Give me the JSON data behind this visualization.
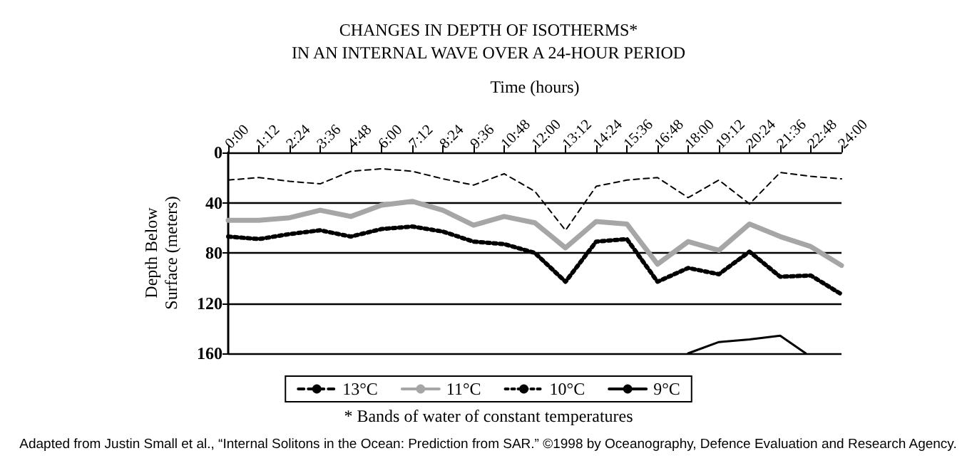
{
  "chart_data": {
    "type": "line",
    "title": "CHANGES IN DEPTH OF ISOTHERMS*\nIN AN INTERNAL WAVE OVER A 24-HOUR PERIOD",
    "xlabel": "Time (hours)",
    "ylabel": "Depth Below\nSurface (meters)",
    "x": [
      0,
      1.2,
      2.4,
      3.6,
      4.8,
      6,
      7.2,
      8.4,
      9.6,
      10.8,
      12,
      13.2,
      14.4,
      15.6,
      16.8,
      18,
      19.2,
      20.4,
      21.6,
      22.8,
      24
    ],
    "series": [
      {
        "name": "13°C",
        "color": "#000000",
        "line_style": "dashed",
        "values": [
          22,
          20,
          23,
          25,
          15,
          13,
          15,
          21,
          26,
          17,
          31,
          62,
          27,
          22,
          20,
          36,
          22,
          41,
          16,
          19,
          21
        ]
      },
      {
        "name": "11°C",
        "color": "#a6a6a6",
        "line_style": "solid",
        "values": [
          54,
          54,
          52,
          46,
          51,
          42,
          39,
          46,
          58,
          51,
          56,
          76,
          55,
          57,
          89,
          71,
          78,
          57,
          67,
          75,
          90
        ]
      },
      {
        "name": "10°C",
        "color": "#000000",
        "line_style": "dotted",
        "values": [
          67,
          69,
          65,
          62,
          67,
          61,
          59,
          63,
          71,
          73,
          80,
          103,
          71,
          69,
          103,
          92,
          97,
          79,
          99,
          98,
          113
        ]
      },
      {
        "name": "9°C",
        "color": "#000000",
        "line_style": "solid",
        "x": [
          18,
          19.2,
          20.4,
          21.6,
          22.6
        ],
        "values": [
          160,
          151,
          149,
          146,
          160
        ]
      }
    ],
    "xlim": [
      0,
      24
    ],
    "xticks": [
      {
        "value": 0,
        "label": "0:00"
      },
      {
        "value": 1.2,
        "label": "1:12"
      },
      {
        "value": 2.4,
        "label": "2:24"
      },
      {
        "value": 3.6,
        "label": "3:36"
      },
      {
        "value": 4.8,
        "label": "4:48"
      },
      {
        "value": 6,
        "label": "6:00"
      },
      {
        "value": 7.2,
        "label": "7:12"
      },
      {
        "value": 8.4,
        "label": "8:24"
      },
      {
        "value": 9.6,
        "label": "9:36"
      },
      {
        "value": 10.8,
        "label": "10:48"
      },
      {
        "value": 12,
        "label": "12:00"
      },
      {
        "value": 13.2,
        "label": "13:12"
      },
      {
        "value": 14.4,
        "label": "14:24"
      },
      {
        "value": 15.6,
        "label": "15:36"
      },
      {
        "value": 16.8,
        "label": "16:48"
      },
      {
        "value": 18,
        "label": "18:00"
      },
      {
        "value": 19.2,
        "label": "19:12"
      },
      {
        "value": 20.4,
        "label": "20:24"
      },
      {
        "value": 21.6,
        "label": "21:36"
      },
      {
        "value": 22.8,
        "label": "22:48"
      },
      {
        "value": 24,
        "label": "24:00"
      }
    ],
    "ylim": [
      160,
      0
    ],
    "yticks": [
      0,
      40,
      80,
      120,
      160
    ],
    "grid": "y",
    "legend": "bottom",
    "marker": "none",
    "annotations": [
      "* Bands of water of constant temperatures",
      "Adapted from Justin Small et al., “Internal Solitons in the Ocean: Prediction from SAR.” ©1998 by Oceanography, Defence Evaluation and Research Agency."
    ]
  }
}
